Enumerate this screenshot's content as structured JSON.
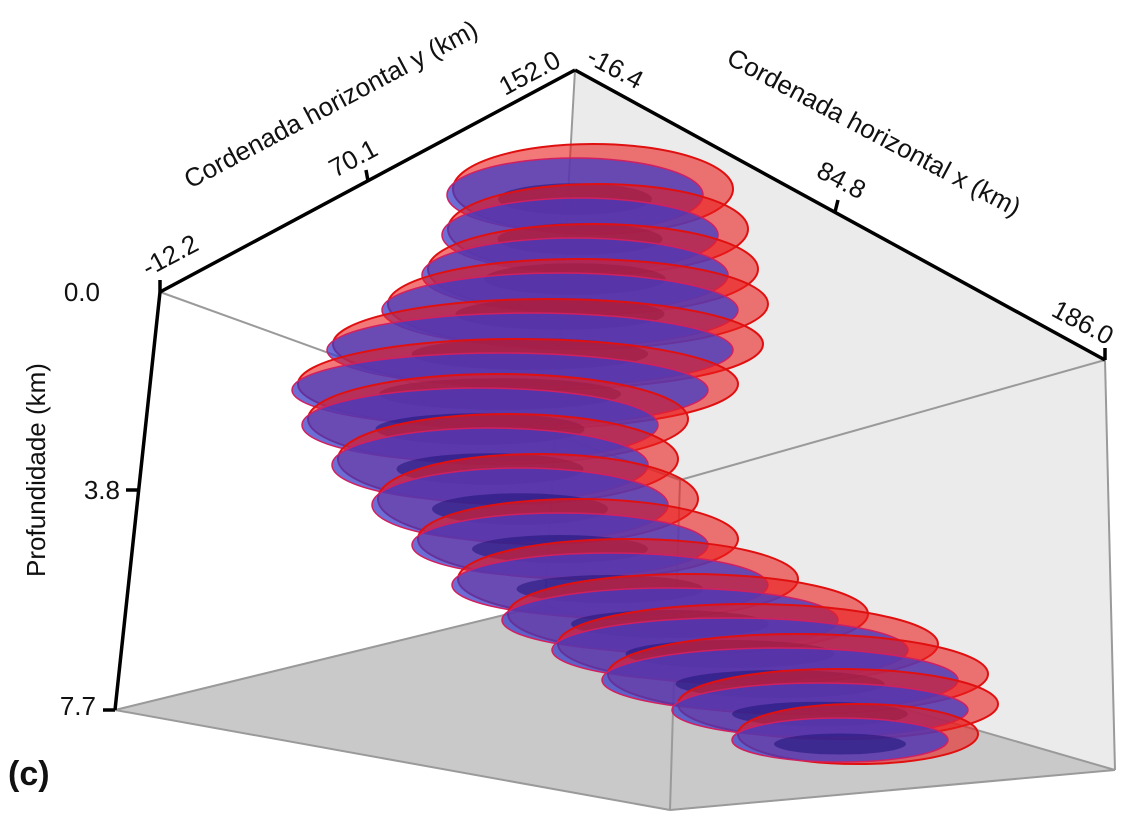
{
  "panel_label": "(c)",
  "axes": {
    "y": {
      "label": "Cordenada horizontal y (km)",
      "ticks": [
        "-12.2",
        "70.1",
        "152.0"
      ]
    },
    "x": {
      "label": "Cordenada horizontal x (km)",
      "ticks": [
        "-16.4",
        "84.8",
        "186.0"
      ]
    },
    "z": {
      "label": "Profundidade (km)",
      "ticks": [
        "0.0",
        "3.8",
        "7.7"
      ]
    }
  }
}
